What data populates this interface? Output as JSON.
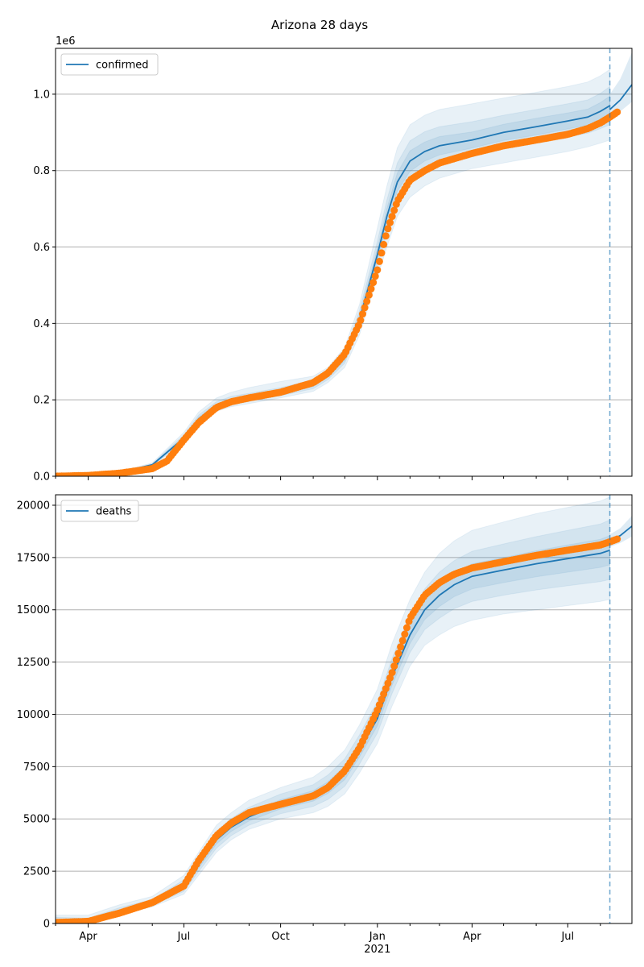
{
  "figure": {
    "title": "Arizona 28 days"
  },
  "colors": {
    "model": "#1f77b4",
    "observed": "#ff7f0e",
    "band": "#1f77b4",
    "grid": "#b0b0b0",
    "forecast_line": "#1f77b4"
  },
  "chart_data": [
    {
      "type": "line",
      "name": "confirmed-panel",
      "legend": "confirmed",
      "legend_position": "top-left",
      "grid": "horizontal",
      "x_domain": [
        "2020-03-01",
        "2021-08-31"
      ],
      "ylim": [
        0,
        1120000
      ],
      "scale_label": "1e6",
      "ytick_values": [
        0,
        200000,
        400000,
        600000,
        800000,
        1000000
      ],
      "ytick_labels": [
        "0.0",
        "0.2",
        "0.4",
        "0.6",
        "0.8",
        "1.0"
      ],
      "forecast_start": "2021-08-10",
      "model_line": {
        "x": [
          "2020-03-01",
          "2020-05-01",
          "2020-06-01",
          "2020-07-01",
          "2020-07-15",
          "2020-08-01",
          "2020-08-15",
          "2020-09-01",
          "2020-10-01",
          "2020-11-01",
          "2020-11-15",
          "2020-12-01",
          "2020-12-15",
          "2021-01-01",
          "2021-01-10",
          "2021-01-20",
          "2021-02-01",
          "2021-02-15",
          "2021-03-01",
          "2021-04-01",
          "2021-05-01",
          "2021-06-01",
          "2021-07-01",
          "2021-07-20",
          "2021-08-01",
          "2021-08-10"
        ],
        "y": [
          0,
          10000,
          30000,
          100000,
          150000,
          185000,
          198000,
          205000,
          220000,
          240000,
          265000,
          310000,
          410000,
          580000,
          680000,
          770000,
          825000,
          850000,
          865000,
          880000,
          900000,
          915000,
          930000,
          940000,
          955000,
          970000
        ]
      },
      "bands": [
        {
          "lower": [
            0,
            8000,
            25000,
            90000,
            135000,
            170000,
            182000,
            190000,
            205000,
            222000,
            245000,
            285000,
            370000,
            520000,
            600000,
            680000,
            730000,
            760000,
            780000,
            805000,
            820000,
            835000,
            850000,
            862000,
            872000,
            880000
          ],
          "upper": [
            0,
            12000,
            35000,
            115000,
            168000,
            205000,
            220000,
            232000,
            248000,
            262000,
            285000,
            338000,
            450000,
            650000,
            760000,
            860000,
            920000,
            945000,
            960000,
            975000,
            990000,
            1005000,
            1020000,
            1032000,
            1048000,
            1065000
          ]
        },
        {
          "lower": [
            0,
            9000,
            27000,
            94000,
            141000,
            176000,
            188000,
            196000,
            211000,
            229000,
            253000,
            296000,
            388000,
            548000,
            638000,
            722000,
            772000,
            800000,
            818000,
            840000,
            858000,
            872000,
            888000,
            898000,
            910000,
            920000
          ],
          "upper": [
            0,
            11000,
            33000,
            108000,
            160000,
            195000,
            209000,
            217000,
            232000,
            252000,
            276000,
            325000,
            433000,
            615000,
            723000,
            820000,
            878000,
            902000,
            915000,
            928000,
            945000,
            960000,
            975000,
            985000,
            1002000,
            1020000
          ]
        },
        {
          "lower": [
            0,
            9500,
            28500,
            97000,
            145500,
            180500,
            193000,
            200500,
            215500,
            234500,
            259000,
            303000,
            399000,
            564000,
            659000,
            746000,
            798000,
            825000,
            841000,
            859000,
            879000,
            893000,
            909000,
            919000,
            932000,
            945000
          ],
          "upper": [
            0,
            10500,
            31500,
            103000,
            154500,
            189500,
            203000,
            209500,
            224500,
            245500,
            271000,
            317000,
            421000,
            596000,
            701000,
            794000,
            852000,
            875000,
            889000,
            901000,
            921000,
            937000,
            951000,
            961000,
            978000,
            995000
          ]
        }
      ],
      "projection": {
        "x": [
          "2021-08-10",
          "2021-08-20",
          "2021-08-31"
        ],
        "y": [
          960000,
          985000,
          1025000
        ],
        "lower": [
          940000,
          955000,
          980000
        ],
        "upper": [
          1000000,
          1040000,
          1110000
        ]
      },
      "observed": {
        "x": [
          "2020-03-01",
          "2020-04-01",
          "2020-05-01",
          "2020-06-01",
          "2020-06-15",
          "2020-07-01",
          "2020-07-15",
          "2020-08-01",
          "2020-08-15",
          "2020-09-01",
          "2020-10-01",
          "2020-11-01",
          "2020-11-15",
          "2020-12-01",
          "2020-12-15",
          "2021-01-01",
          "2021-01-10",
          "2021-01-20",
          "2021-02-01",
          "2021-02-15",
          "2021-03-01",
          "2021-04-01",
          "2021-05-01",
          "2021-06-01",
          "2021-07-01",
          "2021-07-20",
          "2021-08-01",
          "2021-08-10",
          "2021-08-18"
        ],
        "y": [
          0,
          2000,
          8000,
          20000,
          40000,
          95000,
          140000,
          180000,
          195000,
          205000,
          220000,
          245000,
          270000,
          320000,
          400000,
          540000,
          640000,
          720000,
          775000,
          800000,
          820000,
          845000,
          865000,
          880000,
          895000,
          910000,
          925000,
          940000,
          955000
        ]
      }
    },
    {
      "type": "line",
      "name": "deaths-panel",
      "legend": "deaths",
      "legend_position": "top-left",
      "grid": "horizontal",
      "x_domain": [
        "2020-03-01",
        "2021-08-31"
      ],
      "ylim": [
        0,
        20500
      ],
      "ytick_values": [
        0,
        2500,
        5000,
        7500,
        10000,
        12500,
        15000,
        17500,
        20000
      ],
      "ytick_labels": [
        "0",
        "2500",
        "5000",
        "7500",
        "10000",
        "12500",
        "15000",
        "17500",
        "20000"
      ],
      "forecast_start": "2021-08-10",
      "model_line": {
        "x": [
          "2020-03-01",
          "2020-04-01",
          "2020-05-01",
          "2020-06-01",
          "2020-07-01",
          "2020-07-15",
          "2020-08-01",
          "2020-08-15",
          "2020-09-01",
          "2020-10-01",
          "2020-11-01",
          "2020-11-15",
          "2020-12-01",
          "2020-12-15",
          "2021-01-01",
          "2021-01-15",
          "2021-02-01",
          "2021-02-15",
          "2021-03-01",
          "2021-03-15",
          "2021-04-01",
          "2021-05-01",
          "2021-06-01",
          "2021-07-01",
          "2021-08-01",
          "2021-08-10"
        ],
        "y": [
          50,
          100,
          600,
          1000,
          1800,
          2800,
          4000,
          4600,
          5100,
          5700,
          6100,
          6500,
          7200,
          8300,
          9800,
          11800,
          13800,
          15000,
          15700,
          16200,
          16600,
          16900,
          17200,
          17450,
          17700,
          17850
        ]
      },
      "bands": [
        {
          "lower": [
            0,
            50,
            400,
            800,
            1400,
            2300,
            3400,
            4000,
            4500,
            5000,
            5300,
            5600,
            6200,
            7200,
            8600,
            10400,
            12300,
            13300,
            13800,
            14200,
            14500,
            14800,
            15000,
            15200,
            15400,
            15500
          ],
          "upper": [
            400,
            400,
            900,
            1300,
            2300,
            3400,
            4700,
            5300,
            5900,
            6500,
            7000,
            7500,
            8300,
            9500,
            11200,
            13400,
            15500,
            16800,
            17700,
            18300,
            18800,
            19200,
            19600,
            19900,
            20200,
            20400
          ]
        },
        {
          "lower": [
            0,
            70,
            480,
            870,
            1530,
            2480,
            3600,
            4200,
            4700,
            5250,
            5600,
            5930,
            6560,
            7620,
            9100,
            11000,
            12950,
            14050,
            14600,
            15050,
            15400,
            15700,
            15950,
            16150,
            16350,
            16450
          ],
          "upper": [
            300,
            250,
            760,
            1150,
            2090,
            3160,
            4420,
            5020,
            5560,
            6190,
            6640,
            7100,
            7880,
            9020,
            10620,
            12680,
            14750,
            16000,
            16800,
            17350,
            17800,
            18150,
            18500,
            18800,
            19100,
            19300
          ]
        },
        {
          "lower": [
            0,
            85,
            540,
            930,
            1660,
            2640,
            3800,
            4400,
            4900,
            5480,
            5850,
            6220,
            6880,
            7960,
            9450,
            11400,
            13380,
            14530,
            15160,
            15630,
            16000,
            16300,
            16580,
            16800,
            17030,
            17150
          ],
          "upper": [
            200,
            170,
            660,
            1070,
            1940,
            2960,
            4200,
            4800,
            5300,
            5920,
            6350,
            6780,
            7520,
            8640,
            10150,
            12200,
            14220,
            15470,
            16240,
            16770,
            17200,
            17500,
            17820,
            18100,
            18370,
            18550
          ]
        }
      ],
      "projection": {
        "x": [
          "2021-08-10",
          "2021-08-20",
          "2021-08-31"
        ],
        "y": [
          18300,
          18550,
          19000
        ],
        "lower": [
          18000,
          18200,
          18500
        ],
        "upper": [
          18600,
          18900,
          19500
        ]
      },
      "observed": {
        "x": [
          "2020-03-01",
          "2020-04-01",
          "2020-05-01",
          "2020-06-01",
          "2020-07-01",
          "2020-07-15",
          "2020-08-01",
          "2020-08-15",
          "2020-09-01",
          "2020-10-01",
          "2020-11-01",
          "2020-11-15",
          "2020-12-01",
          "2020-12-15",
          "2021-01-01",
          "2021-01-15",
          "2021-02-01",
          "2021-02-15",
          "2021-03-01",
          "2021-03-15",
          "2021-04-01",
          "2021-05-01",
          "2021-06-01",
          "2021-07-01",
          "2021-08-01",
          "2021-08-10",
          "2021-08-18"
        ],
        "y": [
          50,
          100,
          500,
          1000,
          1800,
          3000,
          4200,
          4800,
          5300,
          5700,
          6100,
          6500,
          7300,
          8400,
          10200,
          12000,
          14600,
          15700,
          16300,
          16700,
          17000,
          17300,
          17600,
          17850,
          18100,
          18250,
          18400
        ]
      }
    }
  ],
  "xaxis": {
    "tick_dates": [
      "2020-04-01",
      "2020-07-01",
      "2020-10-01",
      "2021-01-01",
      "2021-04-01",
      "2021-07-01"
    ],
    "tick_labels": [
      "Apr",
      "Jul",
      "Oct",
      "Jan",
      "Apr",
      "Jul"
    ],
    "minor_dates": [
      "2020-03-01",
      "2020-05-01",
      "2020-06-01",
      "2020-08-01",
      "2020-09-01",
      "2020-11-01",
      "2020-12-01",
      "2021-02-01",
      "2021-03-01",
      "2021-05-01",
      "2021-06-01",
      "2021-08-01"
    ],
    "year_label": "2021"
  }
}
